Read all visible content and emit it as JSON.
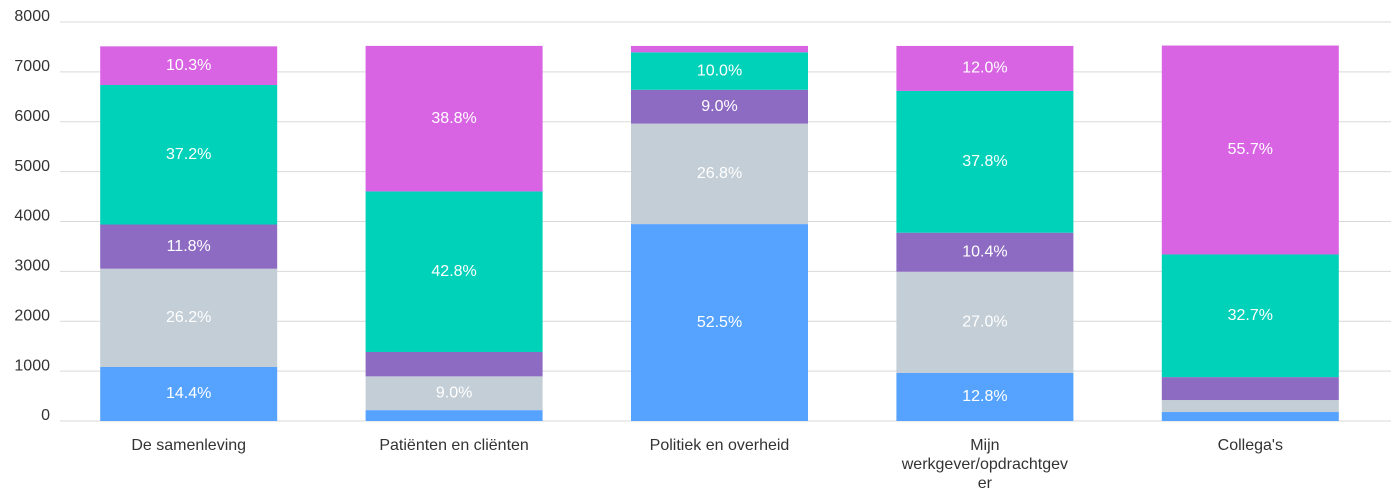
{
  "chart_data": {
    "type": "stacked_bar",
    "categories": [
      "De samenleving",
      "Patiënten en cliënten",
      "Politiek en overheid",
      "Mijn werkgever/opdrachtgever",
      "Collega's"
    ],
    "series": [
      {
        "color": "#56a3ff",
        "values": [
          1083,
          218,
          3948,
          963,
          180
        ],
        "value_labels": [
          "14.4%",
          null,
          "52.5%",
          "12.8%",
          null
        ]
      },
      {
        "color": "#c4ced6",
        "values": [
          1970,
          677,
          2015,
          2030,
          240
        ],
        "value_labels": [
          "26.2%",
          "9.0%",
          "26.8%",
          "27.0%",
          null
        ]
      },
      {
        "color": "#8e6bc3",
        "values": [
          887,
          489,
          677,
          782,
          460
        ],
        "value_labels": [
          "11.8%",
          null,
          "9.0%",
          "10.4%",
          null
        ]
      },
      {
        "color": "#00d1b9",
        "values": [
          2797,
          3219,
          752,
          2843,
          2459
        ],
        "value_labels": [
          "37.2%",
          "42.8%",
          "10.0%",
          "37.8%",
          "32.7%"
        ]
      },
      {
        "color": "#d863e3",
        "values": [
          775,
          2918,
          128,
          902,
          4189
        ],
        "value_labels": [
          "10.3%",
          "38.8%",
          null,
          "12.0%",
          "55.7%"
        ]
      }
    ],
    "ylim": [
      0,
      8000
    ],
    "yticks": [
      0,
      1000,
      2000,
      3000,
      4000,
      5000,
      6000,
      7000,
      8000
    ],
    "grid": true
  }
}
